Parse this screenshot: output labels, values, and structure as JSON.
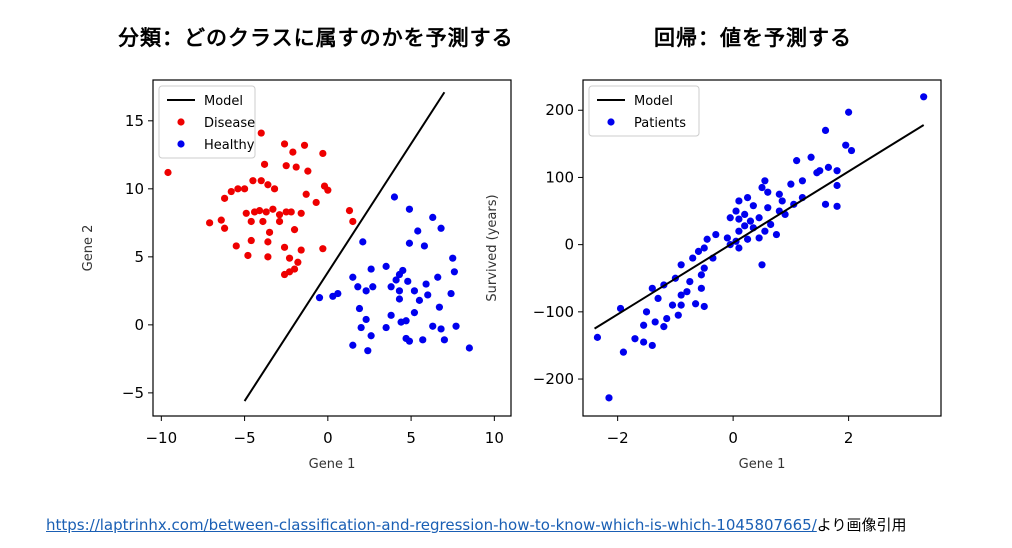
{
  "headings": {
    "left": "分類：どのクラスに属すのかを予測する",
    "right": "回帰：値を予測する"
  },
  "caption": {
    "url": "https://laptrinhx.com/between-classification-and-regression-how-to-know-which-is-which-1045807665/",
    "suffix": "より画像引用"
  },
  "colors": {
    "disease": "#ee0000",
    "healthy": "#0000ee",
    "patients": "#0000ee",
    "model": "#000000"
  },
  "chart_data": [
    {
      "type": "scatter",
      "title": "分類：どのクラスに属すのかを予測する",
      "xlabel": "Gene 1",
      "ylabel": "Gene 2",
      "xlim": [
        -10.5,
        11
      ],
      "ylim": [
        -6.7,
        18
      ],
      "xticks": [
        -10,
        -5,
        0,
        5,
        10
      ],
      "yticks": [
        -5,
        0,
        5,
        10,
        15
      ],
      "xtick_labels": [
        "−10",
        "−5",
        "0",
        "5",
        "10"
      ],
      "ytick_labels": [
        "−5",
        "0",
        "5",
        "10",
        "15"
      ],
      "legend_position": "top-left",
      "line": {
        "name": "Model",
        "x": [
          -5,
          7
        ],
        "y": [
          -5.6,
          17.1
        ]
      },
      "series": [
        {
          "name": "Disease",
          "color": "#ee0000",
          "points": [
            [
              -9.6,
              11.2
            ],
            [
              -4,
              14.1
            ],
            [
              -3.8,
              11.8
            ],
            [
              -2.6,
              13.3
            ],
            [
              -1.4,
              13.2
            ],
            [
              -2.1,
              12.7
            ],
            [
              -2.5,
              11.7
            ],
            [
              -1.9,
              11.6
            ],
            [
              -0.3,
              12.6
            ],
            [
              -1.2,
              11.3
            ],
            [
              -0.2,
              10.2
            ],
            [
              -4.5,
              10.6
            ],
            [
              -4.0,
              10.6
            ],
            [
              -3.6,
              10.3
            ],
            [
              -5.8,
              9.8
            ],
            [
              -5.4,
              10
            ],
            [
              -5.0,
              10
            ],
            [
              -3.2,
              10
            ],
            [
              -1.3,
              9.6
            ],
            [
              -0.7,
              9.0
            ],
            [
              0,
              9.9
            ],
            [
              -6.2,
              9.3
            ],
            [
              -4.9,
              8.2
            ],
            [
              -4.4,
              8.3
            ],
            [
              -4.1,
              8.4
            ],
            [
              -3.7,
              8.3
            ],
            [
              -3.3,
              8.5
            ],
            [
              -2.9,
              8.1
            ],
            [
              -2.5,
              8.3
            ],
            [
              -2.2,
              8.3
            ],
            [
              -1.6,
              8.2
            ],
            [
              -6.4,
              7.7
            ],
            [
              -6.2,
              7.1
            ],
            [
              -7.1,
              7.5
            ],
            [
              -4.6,
              7.6
            ],
            [
              -3.9,
              7.6
            ],
            [
              -2.9,
              7.6
            ],
            [
              -2.0,
              7.0
            ],
            [
              -3.5,
              6.8
            ],
            [
              -4.6,
              6.2
            ],
            [
              -3.6,
              6.1
            ],
            [
              -2.6,
              5.7
            ],
            [
              -1.6,
              5.5
            ],
            [
              -5.5,
              5.8
            ],
            [
              -4.8,
              5.1
            ],
            [
              -3.6,
              5.0
            ],
            [
              -2.3,
              4.9
            ],
            [
              -1.8,
              4.6
            ],
            [
              -2.0,
              4.1
            ],
            [
              -2.3,
              3.9
            ],
            [
              -2.6,
              3.7
            ],
            [
              -0.3,
              5.6
            ],
            [
              1.3,
              8.4
            ],
            [
              1.5,
              7.6
            ]
          ]
        },
        {
          "name": "Healthy",
          "color": "#0000ee",
          "points": [
            [
              4,
              9.4
            ],
            [
              4.9,
              8.5
            ],
            [
              6.3,
              7.9
            ],
            [
              6.8,
              7.1
            ],
            [
              5.4,
              6.9
            ],
            [
              2.1,
              6.1
            ],
            [
              4.9,
              6.0
            ],
            [
              5.8,
              5.8
            ],
            [
              7.5,
              4.9
            ],
            [
              2.6,
              4.1
            ],
            [
              4.5,
              4.0
            ],
            [
              1.5,
              3.5
            ],
            [
              3.5,
              4.3
            ],
            [
              4.3,
              3.7
            ],
            [
              7.6,
              3.9
            ],
            [
              6.6,
              3.5
            ],
            [
              1.8,
              2.8
            ],
            [
              2.7,
              2.8
            ],
            [
              4.1,
              3.3
            ],
            [
              4.8,
              3.2
            ],
            [
              5.9,
              3.0
            ],
            [
              2.3,
              2.5
            ],
            [
              3.8,
              2.8
            ],
            [
              4.3,
              2.5
            ],
            [
              5.2,
              2.5
            ],
            [
              5.5,
              1.8
            ],
            [
              6.0,
              2.2
            ],
            [
              0.3,
              2.1
            ],
            [
              0.6,
              2.3
            ],
            [
              -0.5,
              2.0
            ],
            [
              7.4,
              2.3
            ],
            [
              6.7,
              1.3
            ],
            [
              4.3,
              1.9
            ],
            [
              1.9,
              1.2
            ],
            [
              2.3,
              0.4
            ],
            [
              3.8,
              0.7
            ],
            [
              4.4,
              0.2
            ],
            [
              5.2,
              0.9
            ],
            [
              2.0,
              -0.2
            ],
            [
              3.5,
              -0.2
            ],
            [
              4.7,
              0.3
            ],
            [
              6.3,
              -0.1
            ],
            [
              7.7,
              -0.1
            ],
            [
              6.8,
              -0.3
            ],
            [
              2.6,
              -0.8
            ],
            [
              4.7,
              -1.0
            ],
            [
              4.9,
              -1.2
            ],
            [
              5.7,
              -1.1
            ],
            [
              7.0,
              -1.1
            ],
            [
              1.5,
              -1.5
            ],
            [
              2.4,
              -1.9
            ],
            [
              8.5,
              -1.7
            ]
          ]
        }
      ]
    },
    {
      "type": "scatter",
      "title": "回帰：値を予測する",
      "xlabel": "Gene 1",
      "ylabel": "Survived (years)",
      "xlim": [
        -2.6,
        3.6
      ],
      "ylim": [
        -255,
        245
      ],
      "xticks": [
        -2,
        0,
        2
      ],
      "yticks": [
        -200,
        -100,
        0,
        100,
        200
      ],
      "xtick_labels": [
        "−2",
        "0",
        "2"
      ],
      "ytick_labels": [
        "−200",
        "−100",
        "0",
        "100",
        "200"
      ],
      "legend_position": "top-left",
      "line": {
        "name": "Model",
        "x": [
          -2.4,
          3.3
        ],
        "y": [
          -125,
          178
        ]
      },
      "series": [
        {
          "name": "Patients",
          "color": "#0000ee",
          "points": [
            [
              3.3,
              220
            ],
            [
              2.0,
              197
            ],
            [
              1.6,
              170
            ],
            [
              1.35,
              130
            ],
            [
              1.1,
              125
            ],
            [
              1.65,
              115
            ],
            [
              1.95,
              148
            ],
            [
              2.05,
              140
            ],
            [
              1.8,
              110
            ],
            [
              1.45,
              107
            ],
            [
              1.2,
              95
            ],
            [
              1.0,
              90
            ],
            [
              1.2,
              70
            ],
            [
              0.8,
              75
            ],
            [
              0.85,
              65
            ],
            [
              0.55,
              95
            ],
            [
              0.5,
              85
            ],
            [
              0.6,
              78
            ],
            [
              0.25,
              70
            ],
            [
              0.1,
              65
            ],
            [
              0.05,
              50
            ],
            [
              0.2,
              45
            ],
            [
              0.35,
              58
            ],
            [
              0.45,
              40
            ],
            [
              0.65,
              30
            ],
            [
              0.1,
              38
            ],
            [
              -0.05,
              40
            ],
            [
              0.2,
              28
            ],
            [
              0.35,
              25
            ],
            [
              0.55,
              20
            ],
            [
              0.75,
              15
            ],
            [
              0.1,
              20
            ],
            [
              -0.1,
              10
            ],
            [
              0.05,
              5
            ],
            [
              0.25,
              8
            ],
            [
              0.45,
              10
            ],
            [
              -0.05,
              0
            ],
            [
              0.1,
              -5
            ],
            [
              -0.3,
              15
            ],
            [
              -0.45,
              8
            ],
            [
              -0.5,
              -5
            ],
            [
              -0.6,
              -10
            ],
            [
              -0.35,
              -20
            ],
            [
              -0.7,
              -20
            ],
            [
              -0.5,
              -35
            ],
            [
              -0.55,
              -45
            ],
            [
              -0.9,
              -30
            ],
            [
              -1.0,
              -50
            ],
            [
              -0.75,
              -55
            ],
            [
              -0.55,
              -65
            ],
            [
              -0.8,
              -70
            ],
            [
              -0.9,
              -75
            ],
            [
              -1.2,
              -60
            ],
            [
              -1.4,
              -65
            ],
            [
              -1.3,
              -80
            ],
            [
              -1.05,
              -90
            ],
            [
              -0.9,
              -90
            ],
            [
              -0.65,
              -88
            ],
            [
              -0.5,
              -92
            ],
            [
              -1.5,
              -100
            ],
            [
              -1.35,
              -115
            ],
            [
              -1.15,
              -110
            ],
            [
              -0.95,
              -105
            ],
            [
              -1.55,
              -120
            ],
            [
              -1.2,
              -122
            ],
            [
              -1.7,
              -140
            ],
            [
              -1.55,
              -145
            ],
            [
              -1.4,
              -150
            ],
            [
              -1.95,
              -95
            ],
            [
              -1.9,
              -160
            ],
            [
              -2.35,
              -138
            ],
            [
              -2.15,
              -228
            ],
            [
              1.5,
              110
            ],
            [
              1.8,
              88
            ],
            [
              1.6,
              60
            ],
            [
              1.8,
              57
            ],
            [
              0.3,
              35
            ],
            [
              0.6,
              55
            ],
            [
              0.8,
              50
            ],
            [
              1.05,
              60
            ],
            [
              0.9,
              45
            ],
            [
              0.5,
              -30
            ]
          ]
        }
      ]
    }
  ]
}
